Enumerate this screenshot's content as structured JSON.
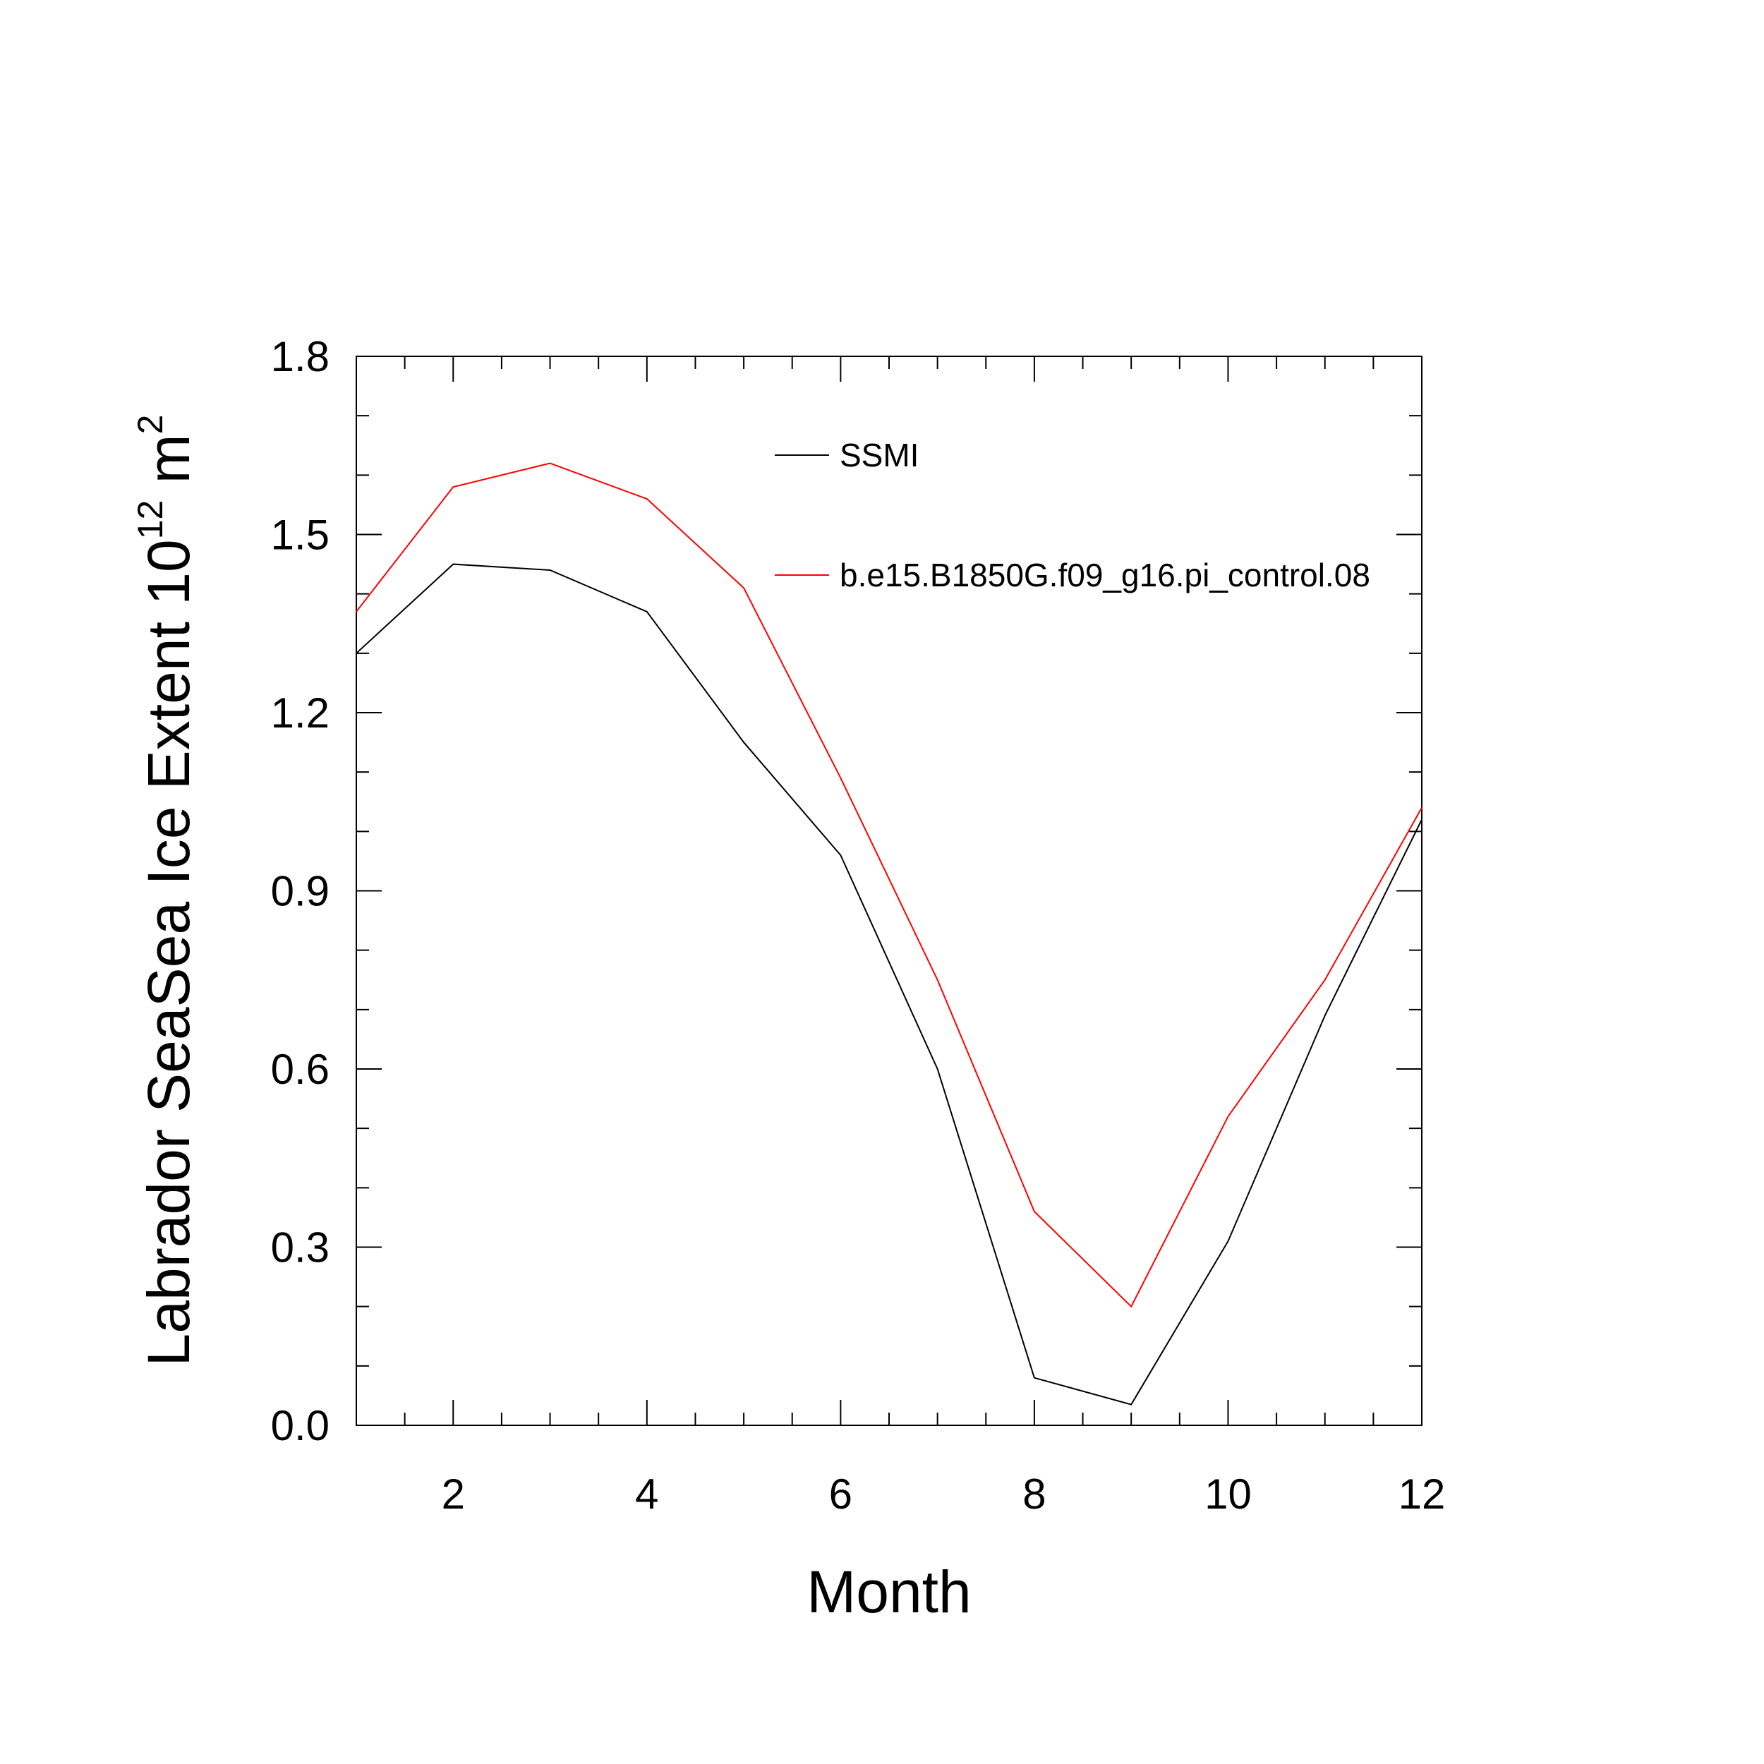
{
  "chart_data": {
    "type": "line",
    "title": "",
    "xlabel": "Month",
    "ylabel": {
      "main": "Labrador SeaSea Ice Extent 10",
      "sup": "12",
      "unit": " m",
      "unit_sup": "2"
    },
    "xlim": [
      1,
      12
    ],
    "ylim": [
      0.0,
      1.8
    ],
    "x_major_ticks": [
      2,
      4,
      6,
      8,
      10,
      12
    ],
    "x_minor_step": 0.5,
    "y_major_ticks": [
      "0.0",
      "0.3",
      "0.6",
      "0.9",
      "1.2",
      "1.5",
      "1.8"
    ],
    "y_minor_step": 0.1,
    "grid": false,
    "legend_placement": "top-right",
    "x": [
      1,
      2,
      3,
      4,
      5,
      6,
      7,
      8,
      9,
      10,
      11,
      12
    ],
    "series": [
      {
        "name": "SSMI",
        "color": "#000000",
        "values": [
          1.3,
          1.45,
          1.44,
          1.37,
          1.15,
          0.96,
          0.6,
          0.08,
          0.035,
          0.31,
          0.69,
          1.02
        ]
      },
      {
        "name": "b.e15.B1850G.f09_g16.pi_control.08",
        "color": "#ff0000",
        "values": [
          1.37,
          1.58,
          1.62,
          1.56,
          1.41,
          1.09,
          0.75,
          0.36,
          0.2,
          0.52,
          0.75,
          1.04
        ]
      }
    ]
  }
}
